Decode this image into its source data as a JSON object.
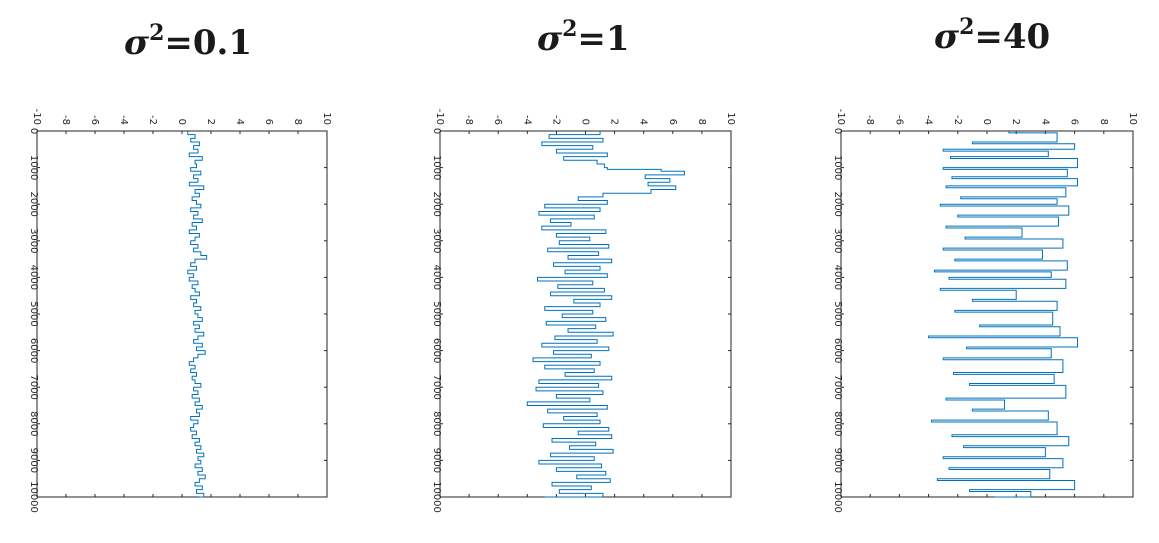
{
  "chart_data": [
    {
      "type": "line",
      "title": "σ²=0.1",
      "title_symbol": "σ",
      "title_exp": "2",
      "title_rest": "=0.1",
      "orientation": "rotated-90",
      "xlim": [
        0,
        10000
      ],
      "ylim": [
        -10,
        10
      ],
      "x_ticks": [
        "0",
        "1000",
        "2000",
        "3000",
        "4000",
        "5000",
        "6000",
        "7000",
        "8000",
        "9000",
        "10000"
      ],
      "y_ticks": [
        "-10",
        "-8",
        "-6",
        "-4",
        "-2",
        "0",
        "2",
        "4",
        "6",
        "8",
        "10"
      ],
      "color": "#0072BD",
      "series": [
        {
          "x": [
            0,
            100,
            200,
            300,
            400,
            500,
            600,
            700,
            800,
            900,
            1000,
            1100,
            1200,
            1300,
            1400,
            1500,
            1600,
            1700,
            1800,
            1900,
            2000,
            2100,
            2200,
            2300,
            2400,
            2500,
            2600,
            2700,
            2800,
            2900,
            3000,
            3100,
            3200,
            3300,
            3400,
            3500,
            3600,
            3700,
            3800,
            3900,
            4000,
            4100,
            4200,
            4300,
            4400,
            4500,
            4600,
            4700,
            4800,
            4900,
            5000,
            5100,
            5200,
            5300,
            5400,
            5500,
            5600,
            5700,
            5800,
            5900,
            6000,
            6100,
            6200,
            6300,
            6400,
            6500,
            6600,
            6700,
            6800,
            6900,
            7000,
            7100,
            7200,
            7300,
            7400,
            7500,
            7600,
            7700,
            7800,
            7900,
            8000,
            8100,
            8200,
            8300,
            8400,
            8500,
            8600,
            8700,
            8800,
            8900,
            9000,
            9100,
            9200,
            9300,
            9400,
            9500,
            9600,
            9700,
            9800,
            9900,
            10000
          ],
          "y": [
            0.4,
            0.9,
            0.6,
            1.2,
            0.8,
            1.1,
            0.5,
            1.4,
            0.9,
            1.0,
            0.6,
            1.3,
            0.8,
            1.1,
            0.5,
            1.5,
            0.9,
            1.2,
            0.7,
            1.0,
            1.3,
            0.6,
            1.1,
            0.8,
            1.4,
            0.7,
            1.0,
            0.5,
            1.2,
            0.9,
            0.6,
            1.1,
            0.8,
            1.3,
            1.7,
            0.9,
            0.6,
            1.0,
            0.4,
            0.8,
            0.5,
            1.1,
            0.7,
            0.9,
            1.2,
            0.6,
            1.0,
            0.8,
            1.3,
            0.9,
            1.1,
            1.4,
            0.8,
            1.2,
            0.9,
            1.5,
            1.1,
            0.8,
            1.4,
            1.0,
            1.6,
            1.1,
            0.8,
            0.5,
            0.9,
            0.6,
            1.0,
            0.7,
            0.9,
            1.3,
            0.8,
            1.1,
            0.7,
            1.2,
            0.9,
            1.4,
            1.0,
            1.2,
            0.6,
            1.1,
            0.8,
            0.6,
            1.0,
            0.7,
            1.2,
            0.9,
            1.3,
            1.0,
            1.5,
            1.1,
            1.3,
            0.9,
            1.4,
            1.1,
            1.6,
            1.2,
            0.9,
            1.4,
            1.0,
            1.5,
            1.2
          ]
        }
      ]
    },
    {
      "type": "line",
      "title": "σ²=1",
      "title_symbol": "σ",
      "title_exp": "2",
      "title_rest": "=1",
      "orientation": "rotated-90",
      "xlim": [
        0,
        10000
      ],
      "ylim": [
        -10,
        10
      ],
      "x_ticks": [
        "0",
        "1000",
        "2000",
        "3000",
        "4000",
        "5000",
        "6000",
        "7000",
        "8000",
        "9000",
        "10000"
      ],
      "y_ticks": [
        "-10",
        "-8",
        "-6",
        "-4",
        "-2",
        "0",
        "2",
        "4",
        "6",
        "8",
        "10"
      ],
      "color": "#0072BD",
      "series": [
        {
          "x": [
            0,
            100,
            200,
            300,
            400,
            500,
            600,
            700,
            800,
            900,
            1000,
            1050,
            1100,
            1200,
            1300,
            1400,
            1500,
            1600,
            1700,
            1800,
            1900,
            2000,
            2100,
            2200,
            2300,
            2400,
            2500,
            2600,
            2700,
            2800,
            2900,
            3000,
            3100,
            3200,
            3300,
            3400,
            3500,
            3600,
            3700,
            3800,
            3900,
            4000,
            4100,
            4200,
            4300,
            4400,
            4500,
            4600,
            4700,
            4800,
            4900,
            5000,
            5100,
            5200,
            5300,
            5400,
            5500,
            5600,
            5700,
            5800,
            5900,
            6000,
            6100,
            6200,
            6300,
            6400,
            6500,
            6600,
            6700,
            6800,
            6900,
            7000,
            7100,
            7200,
            7300,
            7400,
            7500,
            7600,
            7700,
            7800,
            7900,
            8000,
            8100,
            8200,
            8300,
            8400,
            8500,
            8600,
            8700,
            8800,
            8900,
            9000,
            9100,
            9200,
            9300,
            9400,
            9500,
            9600,
            9700,
            9800,
            9900,
            10000
          ],
          "y": [
            1.0,
            -2.5,
            1.2,
            -3.0,
            0.5,
            -2.0,
            1.5,
            -1.5,
            0.8,
            1.3,
            1.5,
            5.2,
            6.8,
            4.1,
            5.8,
            4.3,
            6.2,
            4.5,
            1.2,
            -0.5,
            1.5,
            -2.8,
            1.0,
            -3.2,
            0.6,
            -2.4,
            -1.0,
            -3.0,
            1.4,
            -2.0,
            0.3,
            -1.8,
            1.6,
            -2.6,
            0.9,
            -1.2,
            1.8,
            -2.2,
            1.0,
            -1.4,
            1.5,
            -3.3,
            0.5,
            -1.9,
            1.3,
            -2.4,
            1.8,
            -0.8,
            1.0,
            -2.8,
            0.5,
            -1.6,
            1.4,
            -2.7,
            0.7,
            -1.2,
            1.9,
            -2.1,
            0.8,
            -3.0,
            1.6,
            -2.2,
            0.4,
            -3.6,
            1.0,
            -2.8,
            0.6,
            -1.4,
            1.8,
            -3.2,
            0.9,
            -3.4,
            1.2,
            -2.0,
            0.3,
            -4.0,
            1.5,
            -2.6,
            0.8,
            -1.5,
            1.0,
            -2.9,
            1.6,
            -0.5,
            1.8,
            -2.3,
            0.7,
            -1.1,
            1.9,
            -2.4,
            0.6,
            -3.2,
            1.1,
            -2.0,
            1.4,
            -0.6,
            1.7,
            -2.3,
            0.4,
            -1.8,
            1.2,
            -2.8
          ]
        }
      ]
    },
    {
      "type": "line",
      "title": "σ²=40",
      "title_symbol": "σ",
      "title_exp": "2",
      "title_rest": "=40",
      "orientation": "rotated-90",
      "xlim": [
        0,
        10000
      ],
      "ylim": [
        -10,
        10
      ],
      "x_ticks": [
        "0",
        "1000",
        "2000",
        "3000",
        "4000",
        "5000",
        "6000",
        "7000",
        "8000",
        "9000",
        "10000"
      ],
      "y_ticks": [
        "-10",
        "-8",
        "-6",
        "-4",
        "-2",
        "0",
        "2",
        "4",
        "6",
        "8",
        "10"
      ],
      "color": "#0072BD",
      "series": [
        {
          "x": [
            0,
            50,
            300,
            350,
            500,
            550,
            700,
            750,
            1000,
            1050,
            1250,
            1300,
            1500,
            1550,
            1800,
            1850,
            2000,
            2050,
            2300,
            2350,
            2600,
            2650,
            2900,
            2950,
            3200,
            3250,
            3500,
            3550,
            3800,
            3850,
            4000,
            4050,
            4300,
            4350,
            4600,
            4650,
            4900,
            4950,
            5300,
            5350,
            5600,
            5650,
            5900,
            5950,
            6200,
            6250,
            6600,
            6650,
            6900,
            6950,
            7300,
            7350,
            7600,
            7650,
            7900,
            7950,
            8300,
            8350,
            8600,
            8650,
            8900,
            8950,
            9200,
            9250,
            9500,
            9550,
            9800,
            9850,
            10000
          ],
          "y": [
            1.5,
            4.8,
            -1.0,
            6.0,
            -3.0,
            4.2,
            -2.5,
            6.2,
            -3.0,
            5.5,
            -2.4,
            6.2,
            -2.8,
            5.4,
            -1.8,
            4.8,
            -3.2,
            5.6,
            -2.0,
            4.9,
            -2.8,
            2.4,
            -1.5,
            5.2,
            -3.0,
            3.8,
            -2.2,
            5.5,
            -3.6,
            4.4,
            -2.6,
            5.4,
            -3.2,
            2.0,
            -1.0,
            4.8,
            -2.2,
            4.5,
            -0.5,
            5.0,
            -4.0,
            6.2,
            -1.4,
            4.4,
            -3.0,
            5.2,
            -2.3,
            4.6,
            -1.2,
            5.4,
            -2.8,
            1.2,
            -1.0,
            4.2,
            -3.8,
            4.8,
            -2.4,
            5.6,
            -1.6,
            4.0,
            -3.0,
            5.2,
            -2.6,
            4.3,
            -3.4,
            6.0,
            -1.2,
            3.0,
            0.5
          ]
        }
      ]
    }
  ]
}
